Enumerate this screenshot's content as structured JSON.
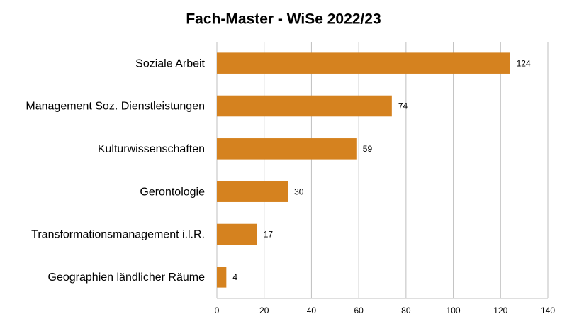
{
  "chart_data": {
    "type": "bar",
    "orientation": "horizontal",
    "title": "Fach-Master - WiSe 2022/23",
    "categories": [
      "Soziale Arbeit",
      "Management Soz. Dienstleistungen",
      "Kulturwissenschaften",
      "Gerontologie",
      "Transformationsmanagement i.l.R.",
      "Geographien ländlicher Räume"
    ],
    "values": [
      124,
      74,
      59,
      30,
      17,
      4
    ],
    "color": "#d5821f",
    "xlim": [
      0,
      140
    ],
    "xticks": [
      0,
      20,
      40,
      60,
      80,
      100,
      120,
      140
    ],
    "grid": true,
    "data_labels": true
  }
}
